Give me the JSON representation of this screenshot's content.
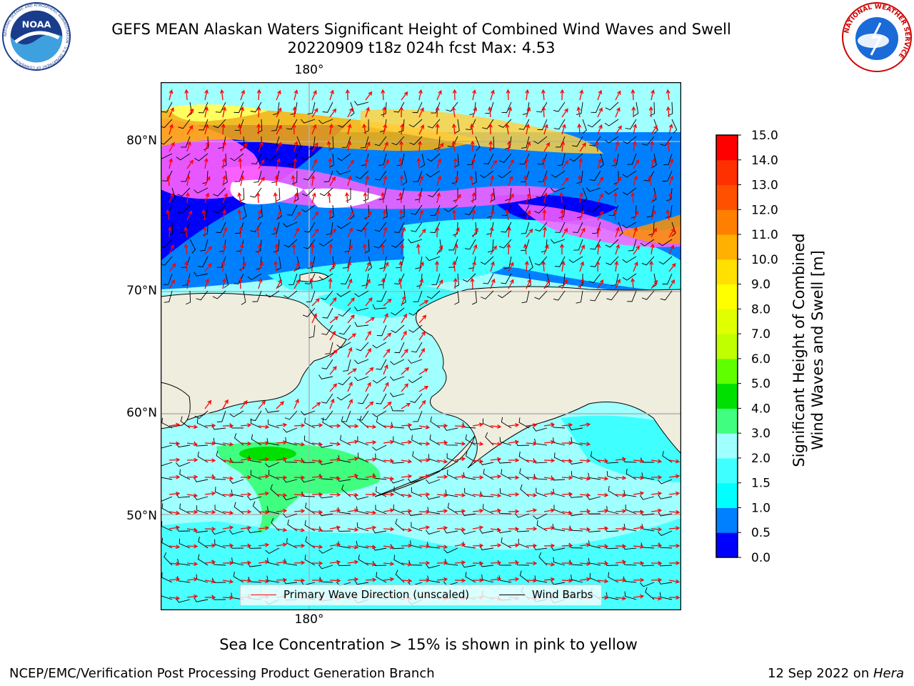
{
  "header": {
    "title": "GEFS MEAN Alaskan Waters Significant Height of Combined Wind Waves and Swell",
    "subtitle": "20220909 t18z 024h fcst   Max: 4.53"
  },
  "logos": {
    "noaa_text": "NOAA",
    "noaa_ring": "NATIONAL OCEANIC AND ATMOSPHERIC ADMINISTRATION · U.S. DEPARTMENT OF COMMERCE",
    "nws_ring": "NATIONAL WEATHER SERVICE"
  },
  "map": {
    "lat_labels": [
      "80°N",
      "70°N",
      "60°N",
      "50°N"
    ],
    "lon_label_top": "180°",
    "lon_label_bottom": "180°",
    "colors": {
      "land": "#efedde",
      "coast": "#000000",
      "grid": "#b0b0b0",
      "arrow": "#ff0000",
      "barb": "#000000"
    }
  },
  "legend": {
    "items": [
      {
        "label": "Primary Wave Direction (unscaled)",
        "color": "#ff0000"
      },
      {
        "label": "Wind Barbs",
        "color": "#000000"
      }
    ]
  },
  "colorbar": {
    "title_line1": "Significant Height of Combined",
    "title_line2": "Wind Waves and Swell [m]",
    "ticks": [
      "0.0",
      "0.5",
      "1.0",
      "1.5",
      "2.0",
      "3.0",
      "4.0",
      "5.0",
      "6.0",
      "7.0",
      "8.0",
      "9.0",
      "10.0",
      "11.0",
      "12.0",
      "13.0",
      "14.0",
      "15.0"
    ],
    "colors": [
      "#0000ff",
      "#0080ff",
      "#00ffff",
      "#40ffff",
      "#a0ffff",
      "#40ff80",
      "#00e000",
      "#60ff00",
      "#c0ff00",
      "#e0ff00",
      "#ffff00",
      "#ffe000",
      "#ffb000",
      "#ff8000",
      "#ff5000",
      "#ff3000",
      "#ff0000"
    ]
  },
  "footer": {
    "note": "Sea Ice Concentration > 15% is shown in pink to yellow",
    "credit_left": "NCEP/EMC/Verification Post Processing Product Generation Branch",
    "credit_date": "12 Sep 2022 on ",
    "credit_machine": "Hera"
  }
}
